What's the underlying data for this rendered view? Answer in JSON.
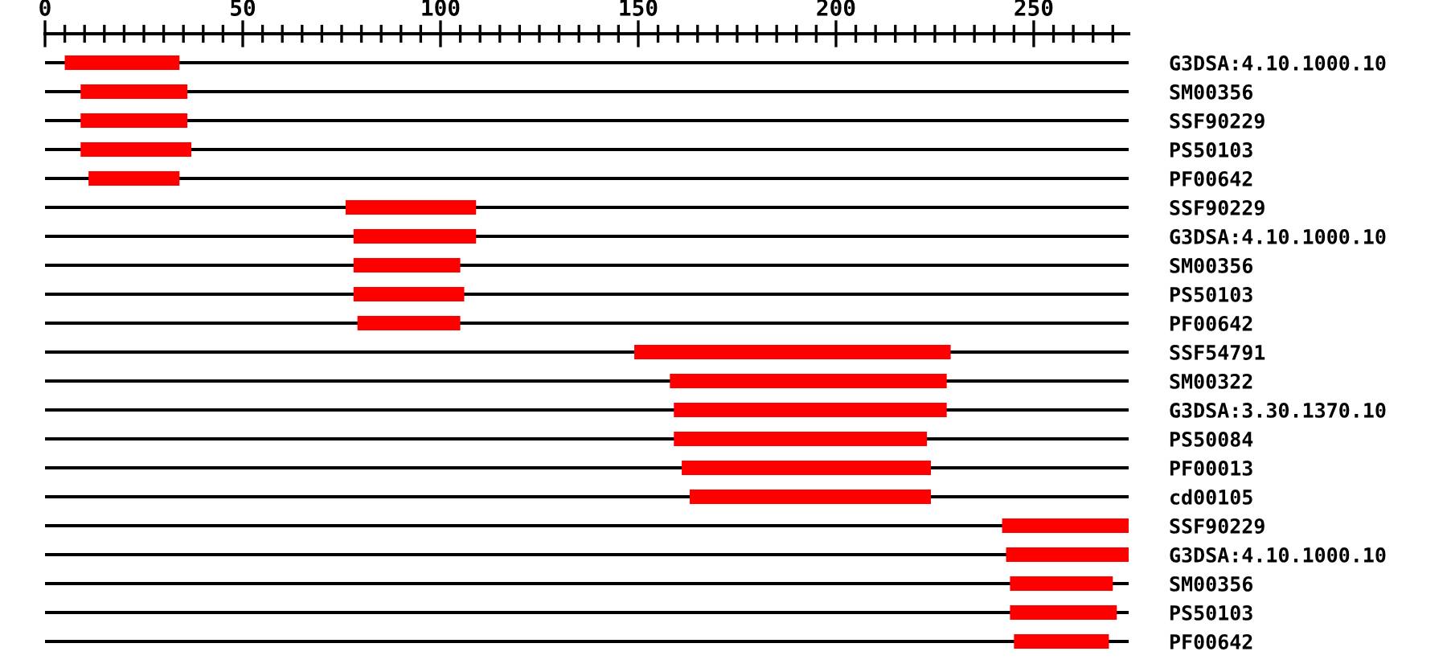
{
  "chart_data": {
    "type": "bar",
    "orientation": "horizontal",
    "color": "#ff0000",
    "grid": "y",
    "categories": [
      "G3DSA:4.10.1000.10",
      "SM00356",
      "SSF90229",
      "PS50103",
      "PF00642",
      "SSF90229",
      "G3DSA:4.10.1000.10",
      "SM00356",
      "PS50103",
      "PF00642",
      "SSF54791",
      "SM00322",
      "G3DSA:3.30.1370.10",
      "PS50084",
      "PF00013",
      "cd00105",
      "SSF90229",
      "G3DSA:4.10.1000.10",
      "SM00356",
      "PS50103",
      "PF00642"
    ],
    "base": [
      5,
      9,
      9,
      9,
      11,
      76,
      78,
      78,
      78,
      79,
      149,
      158,
      159,
      159,
      161,
      163,
      242,
      243,
      244,
      244,
      245
    ],
    "values": [
      29,
      27,
      27,
      28,
      23,
      33,
      31,
      27,
      28,
      26,
      80,
      70,
      69,
      64,
      63,
      61,
      32,
      31,
      26,
      27,
      24
    ],
    "xlim": [
      0,
      274
    ],
    "xticks": [
      0,
      {
        "value": 5,
        "label": null
      },
      {
        "value": 10,
        "label": null
      },
      {
        "value": 15,
        "label": null
      },
      {
        "value": 20,
        "label": null
      },
      {
        "value": 25,
        "label": null
      },
      {
        "value": 30,
        "label": null
      },
      {
        "value": 35,
        "label": null
      },
      {
        "value": 40,
        "label": null
      },
      {
        "value": 45,
        "label": null
      },
      50,
      {
        "value": 55,
        "label": null
      },
      {
        "value": 60,
        "label": null
      },
      {
        "value": 65,
        "label": null
      },
      {
        "value": 70,
        "label": null
      },
      {
        "value": 75,
        "label": null
      },
      {
        "value": 80,
        "label": null
      },
      {
        "value": 85,
        "label": null
      },
      {
        "value": 90,
        "label": null
      },
      {
        "value": 95,
        "label": null
      },
      100,
      {
        "value": 105,
        "label": null
      },
      {
        "value": 110,
        "label": null
      },
      {
        "value": 115,
        "label": null
      },
      {
        "value": 120,
        "label": null
      },
      {
        "value": 125,
        "label": null
      },
      {
        "value": 130,
        "label": null
      },
      {
        "value": 135,
        "label": null
      },
      {
        "value": 140,
        "label": null
      },
      {
        "value": 145,
        "label": null
      },
      150,
      {
        "value": 155,
        "label": null
      },
      {
        "value": 160,
        "label": null
      },
      {
        "value": 165,
        "label": null
      },
      {
        "value": 170,
        "label": null
      },
      {
        "value": 175,
        "label": null
      },
      {
        "value": 180,
        "label": null
      },
      {
        "value": 185,
        "label": null
      },
      {
        "value": 190,
        "label": null
      },
      {
        "value": 195,
        "label": null
      },
      200,
      {
        "value": 205,
        "label": null
      },
      {
        "value": 210,
        "label": null
      },
      {
        "value": 215,
        "label": null
      },
      {
        "value": 220,
        "label": null
      },
      {
        "value": 225,
        "label": null
      },
      {
        "value": 230,
        "label": null
      },
      {
        "value": 235,
        "label": null
      },
      {
        "value": 240,
        "label": null
      },
      {
        "value": 245,
        "label": null
      },
      250,
      {
        "value": 255,
        "label": null
      },
      {
        "value": 260,
        "label": null
      },
      {
        "value": 265,
        "label": null
      },
      {
        "value": 270,
        "label": null
      }
    ]
  }
}
